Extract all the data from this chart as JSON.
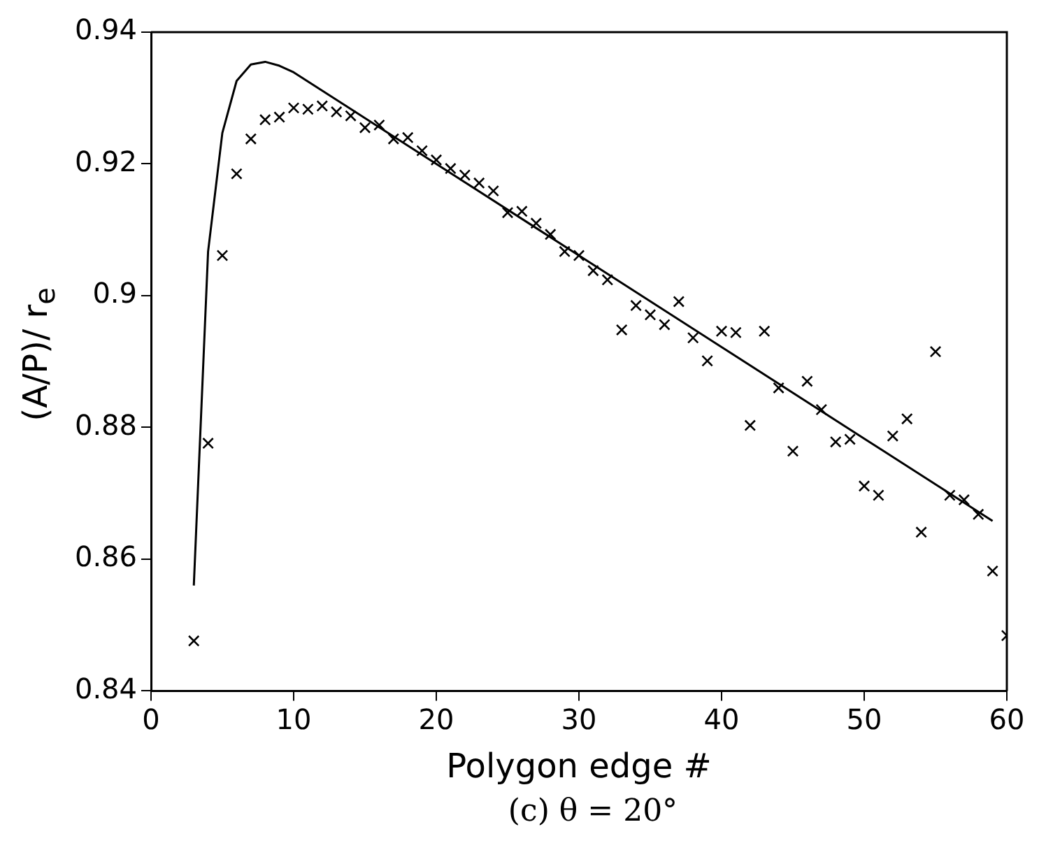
{
  "chart_data": {
    "type": "scatter",
    "xlabel": "Polygon edge #",
    "ylabel": "(A/P)/ r$_{e}$",
    "annotations": [
      "(c) θ = 20°"
    ],
    "xlim": [
      0,
      60
    ],
    "xticks": [
      0,
      10,
      20,
      30,
      40,
      50,
      60
    ],
    "ylim": [
      0.84,
      0.94
    ],
    "yticks": [
      0.84,
      0.86,
      0.88,
      0.9,
      0.92,
      0.94
    ],
    "grid": false,
    "legend": false,
    "series": [
      {
        "type": "scatter",
        "marker": "cross",
        "color": "#000000",
        "x": [
          3,
          4,
          5,
          6,
          7,
          8,
          9,
          10,
          11,
          12,
          13,
          14,
          15,
          16,
          17,
          18,
          19,
          20,
          21,
          22,
          23,
          24,
          25,
          26,
          27,
          28,
          29,
          30,
          31,
          32,
          33,
          34,
          35,
          36,
          37,
          38,
          39,
          40,
          41,
          42,
          43,
          44,
          45,
          46,
          47,
          48,
          49,
          50,
          51,
          52,
          53,
          54,
          55,
          56,
          57,
          58,
          59,
          60
        ],
        "values": [
          0.8476,
          0.8776,
          0.9061,
          0.9185,
          0.9238,
          0.9267,
          0.9271,
          0.9285,
          0.9283,
          0.9288,
          0.9279,
          0.9273,
          0.9255,
          0.9259,
          0.9238,
          0.924,
          0.922,
          0.9206,
          0.9193,
          0.9183,
          0.9171,
          0.9159,
          0.9126,
          0.9128,
          0.911,
          0.9093,
          0.9067,
          0.9061,
          0.9038,
          0.9024,
          0.8948,
          0.8985,
          0.8971,
          0.8956,
          0.8991,
          0.8936,
          0.8901,
          0.8946,
          0.8944,
          0.8803,
          0.8946,
          0.886,
          0.8764,
          0.887,
          0.8827,
          0.8778,
          0.8782,
          0.8711,
          0.8697,
          0.8787,
          0.8813,
          0.8641,
          0.8915,
          0.8697,
          0.869,
          0.8668,
          0.8582,
          0.8484
        ]
      },
      {
        "type": "line",
        "marker": "none",
        "line_style": "solid",
        "color": "#000000",
        "x": [
          3,
          4,
          5,
          6,
          7,
          8,
          9,
          10,
          20,
          30,
          40,
          50,
          59
        ],
        "values": [
          0.856,
          0.9067,
          0.9247,
          0.9326,
          0.9351,
          0.9355,
          0.9349,
          0.9339,
          0.92,
          0.9061,
          0.8922,
          0.8783,
          0.8658
        ]
      }
    ]
  }
}
